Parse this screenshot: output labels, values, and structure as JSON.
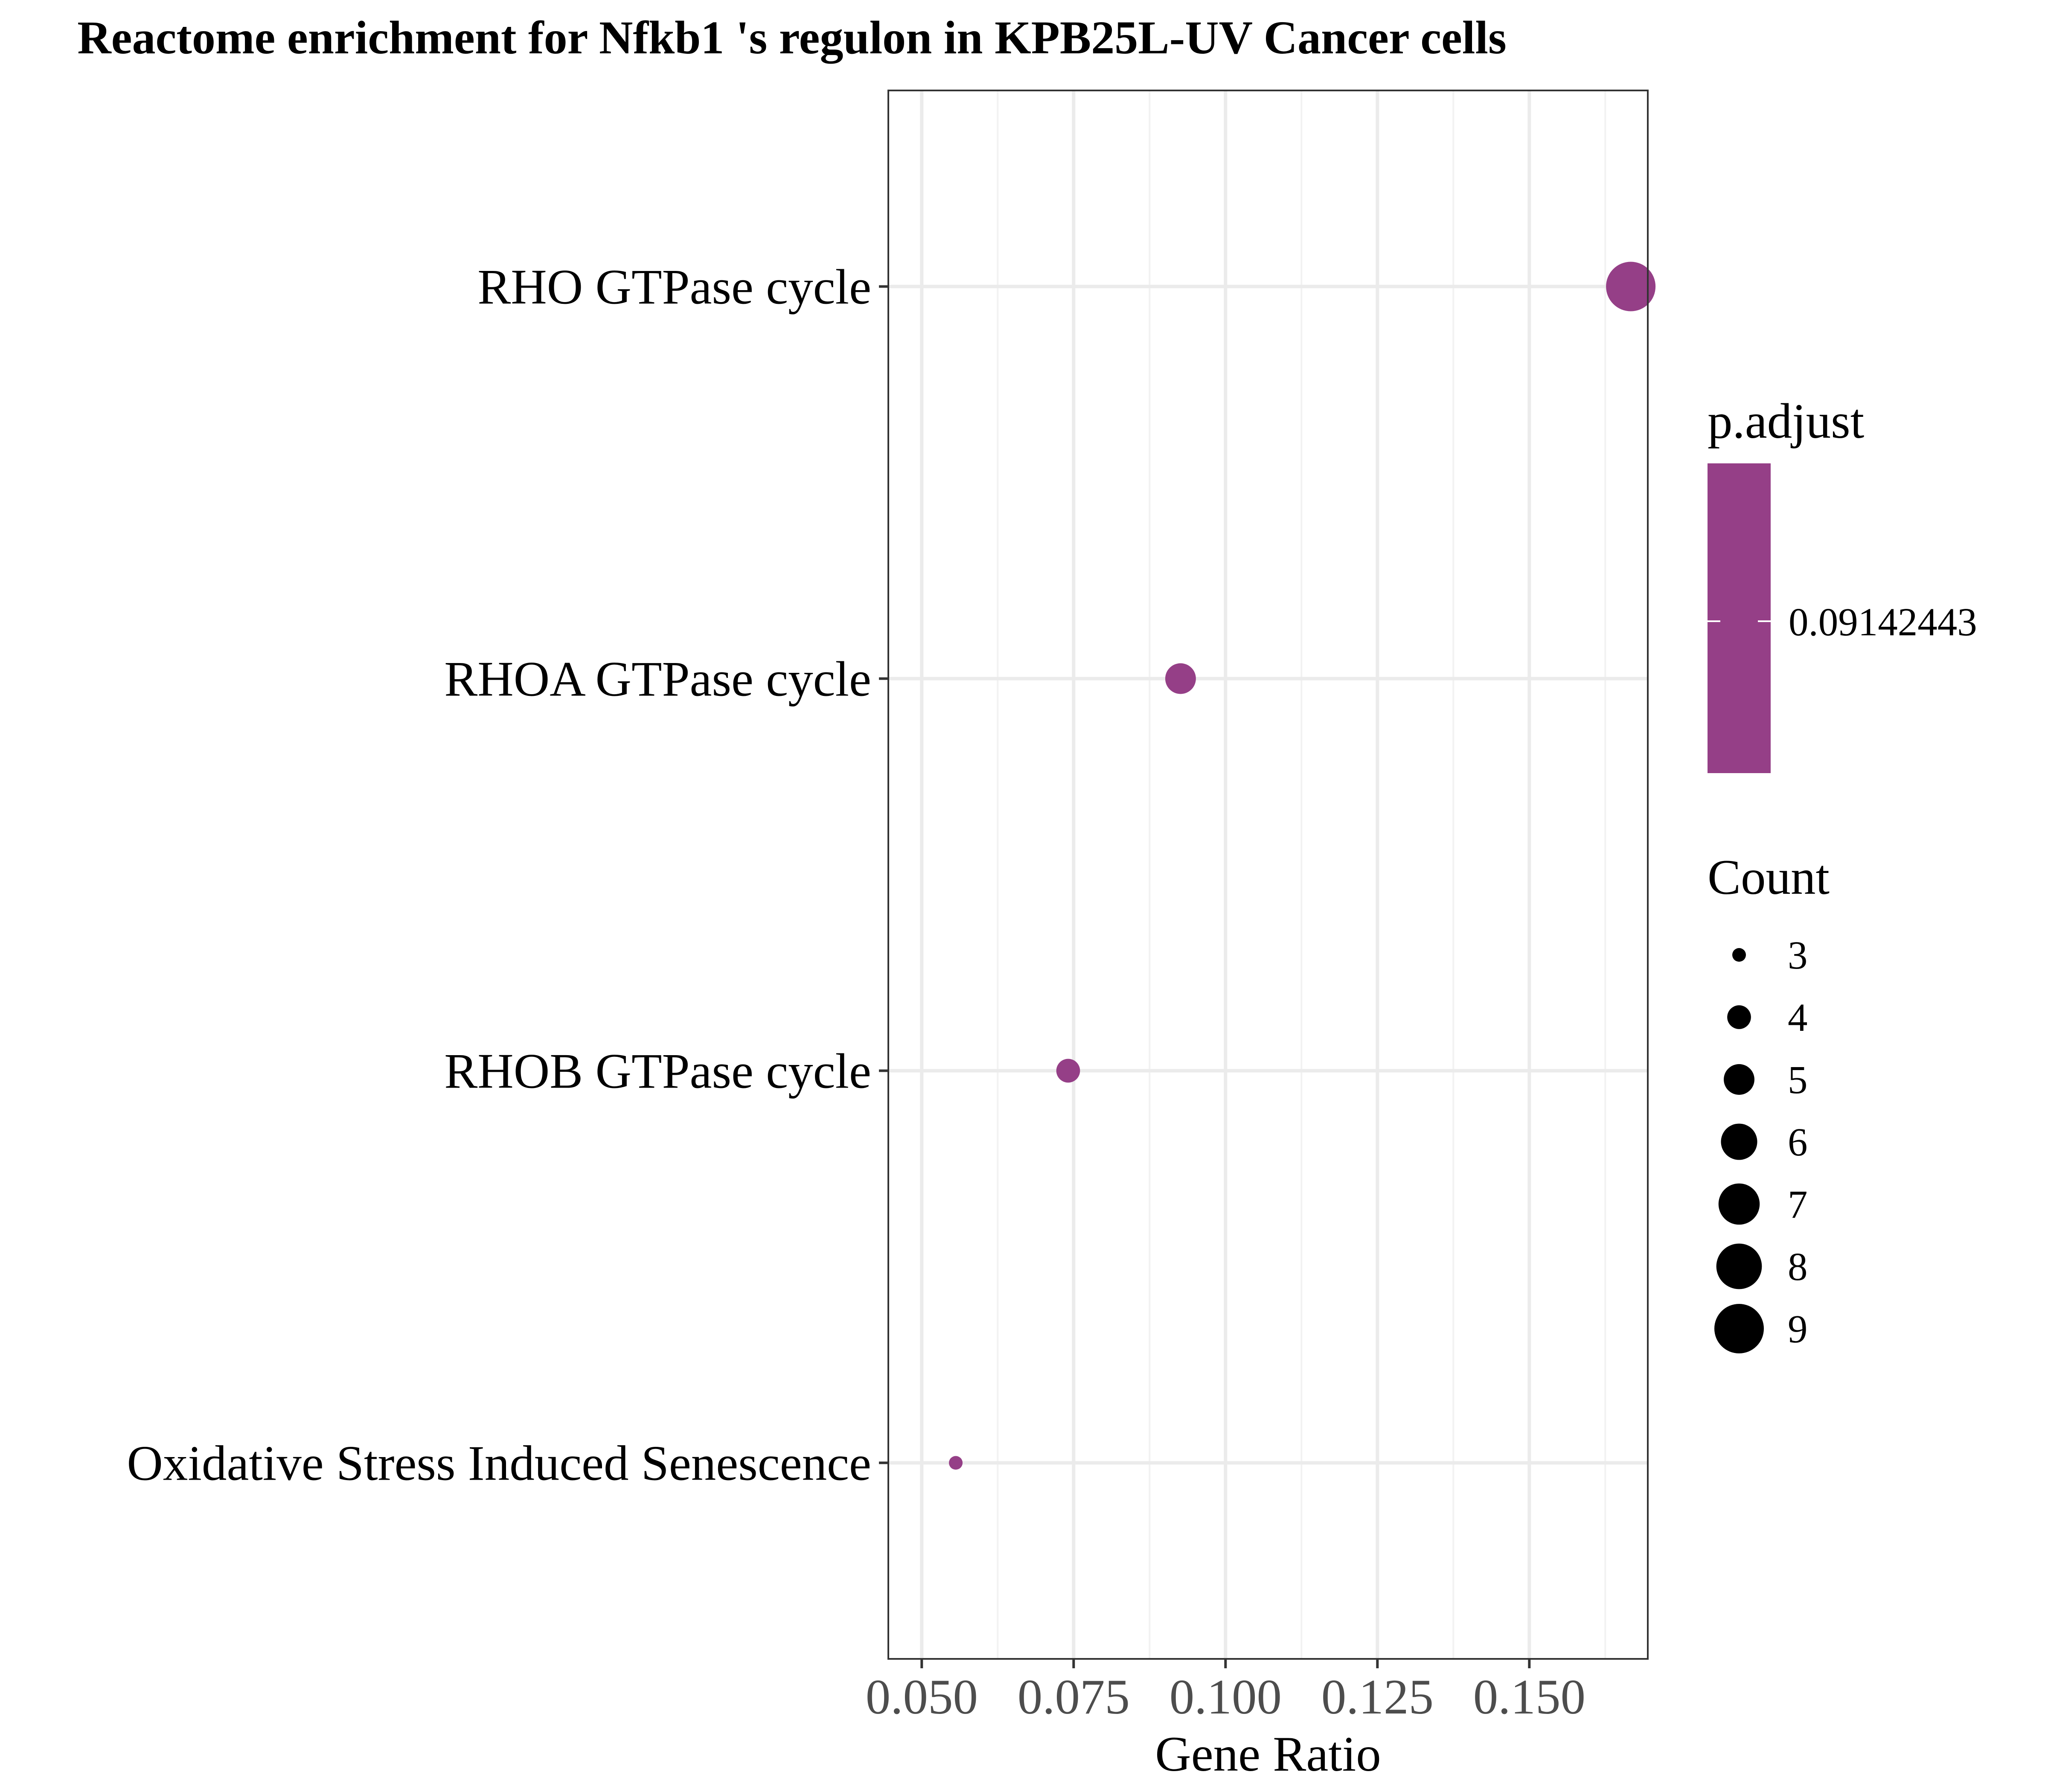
{
  "chart_data": {
    "type": "scatter",
    "title": "Reactome enrichment for Nfkb1 's regulon in KPB25L-UV Cancer cells",
    "xlabel": "Gene Ratio",
    "ylabel": "",
    "xlim": [
      0.0445,
      0.1695
    ],
    "x_ticks": [
      "0.050",
      "0.075",
      "0.100",
      "0.125",
      "0.150"
    ],
    "x_tick_values": [
      0.05,
      0.075,
      0.1,
      0.125,
      0.15
    ],
    "grid": true,
    "categories": [
      "RHO GTPase cycle",
      "RHOA GTPase cycle",
      "RHOB GTPase cycle",
      "Oxidative Stress Induced Senescence"
    ],
    "points": [
      {
        "category": "RHO GTPase cycle",
        "gene_ratio": 0.1667,
        "count": 9,
        "p_adjust": 0.09142443
      },
      {
        "category": "RHOA GTPase cycle",
        "gene_ratio": 0.0926,
        "count": 5,
        "p_adjust": 0.09142443
      },
      {
        "category": "RHOB GTPase cycle",
        "gene_ratio": 0.0741,
        "count": 4,
        "p_adjust": 0.09142443
      },
      {
        "category": "Oxidative Stress Induced Senescence",
        "gene_ratio": 0.0556,
        "count": 3,
        "p_adjust": 0.09142443
      }
    ],
    "point_color": "#953F87",
    "legend": {
      "placement": "right",
      "color": {
        "title": "p.adjust",
        "labels": [
          "0.09142443"
        ],
        "color": "#953F87"
      },
      "size": {
        "title": "Count",
        "values": [
          3,
          4,
          5,
          6,
          7,
          8,
          9
        ],
        "labels": [
          "3",
          "4",
          "5",
          "6",
          "7",
          "8",
          "9"
        ]
      }
    }
  }
}
